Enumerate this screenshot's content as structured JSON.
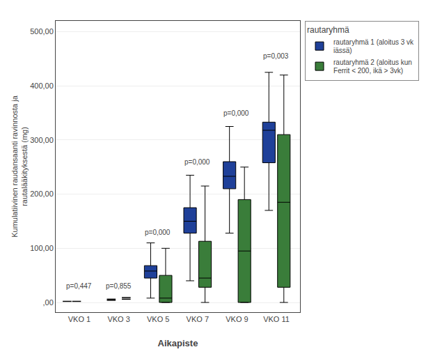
{
  "chart_data": {
    "type": "box",
    "xlabel": "Aikapiste",
    "ylabel": "Kumulatiivinen raudansaanti ravinnosta ja\nrautalääkityksestä (mg)",
    "legend_title": "rautaryhmä",
    "categories": [
      "VKO 1",
      "VKO 3",
      "VKO 5",
      "VKO 7",
      "VKO 9",
      "VKO 11"
    ],
    "series": [
      {
        "name": "rautaryhmä 1 (aloitus 3 vk\niässä)",
        "color": "#1F4099",
        "q1": [
          null,
          null,
          45,
          128,
          210,
          258
        ],
        "median": [
          null,
          null,
          58,
          150,
          233,
          318
        ],
        "q3": [
          null,
          null,
          68,
          175,
          260,
          333
        ],
        "whislo": [
          null,
          null,
          8,
          40,
          128,
          170
        ],
        "whishi": [
          null,
          null,
          110,
          235,
          325,
          425
        ],
        "fliers": [
          [
            2,
            2
          ],
          [
            4,
            6
          ],
          [],
          [],
          [],
          []
        ]
      },
      {
        "name": "rautaryhmä 2 (aloitus kun\nFerrit < 200, ikä > 3vk)",
        "color": "#3A7D3A",
        "q1": [
          null,
          null,
          0,
          28,
          0,
          28
        ],
        "median": [
          null,
          null,
          8,
          45,
          95,
          185
        ],
        "q3": [
          null,
          null,
          50,
          113,
          190,
          310
        ],
        "whislo": [
          null,
          null,
          0,
          0,
          0,
          0
        ],
        "whishi": [
          null,
          null,
          100,
          215,
          250,
          420
        ],
        "fliers": [
          [],
          [
            6,
            9
          ],
          [],
          [],
          [],
          []
        ]
      }
    ],
    "annotations": [
      {
        "text": "p=0,447",
        "x": 0,
        "y": 20
      },
      {
        "text": "p=0,855",
        "x": 1,
        "y": 20
      },
      {
        "text": "p=0,000",
        "x": 2,
        "y": 120
      },
      {
        "text": "p=0,000",
        "x": 3,
        "y": 250
      },
      {
        "text": "p=0,000",
        "x": 4,
        "y": 340
      },
      {
        "text": "p=0,003",
        "x": 5,
        "y": 445
      }
    ],
    "ylim": [
      -18,
      520
    ],
    "yticks": [
      {
        "value": 0,
        "label": ",00"
      },
      {
        "value": 100,
        "label": "100,00"
      },
      {
        "value": 200,
        "label": "200,00"
      },
      {
        "value": 300,
        "label": "300,00"
      },
      {
        "value": 400,
        "label": "400,00"
      },
      {
        "value": 500,
        "label": "500,00"
      }
    ],
    "grid": true,
    "legend": "right"
  }
}
